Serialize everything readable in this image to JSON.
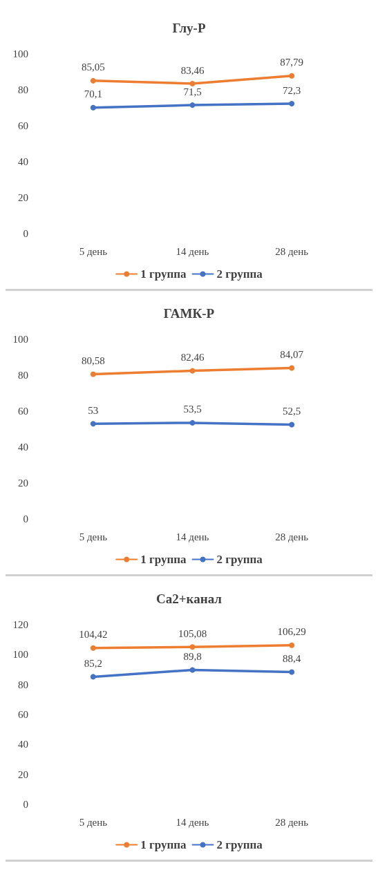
{
  "chart_data": [
    {
      "type": "line",
      "title": "Глу-Р",
      "categories": [
        "5 день",
        "14 день",
        "28 день"
      ],
      "ylim": [
        0,
        100
      ],
      "yticks": [
        0,
        20,
        40,
        60,
        80,
        100
      ],
      "legend": "bottom",
      "marker": "circle",
      "series": [
        {
          "name": "1 группа",
          "color": "#ed7d31",
          "values": [
            85.05,
            83.46,
            87.79
          ],
          "value_labels": [
            "85,05",
            "83,46",
            "87,79"
          ]
        },
        {
          "name": "2 группа",
          "color": "#4472c4",
          "values": [
            70.1,
            71.5,
            72.3
          ],
          "value_labels": [
            "70,1",
            "71,5",
            "72,3"
          ]
        }
      ]
    },
    {
      "type": "line",
      "title": "ГАМК-Р",
      "categories": [
        "5 день",
        "14 день",
        "28 день"
      ],
      "ylim": [
        0,
        100
      ],
      "yticks": [
        0,
        20,
        40,
        60,
        80,
        100
      ],
      "legend": "bottom",
      "marker": "circle",
      "series": [
        {
          "name": "1 группа",
          "color": "#ed7d31",
          "values": [
            80.58,
            82.46,
            84.07
          ],
          "value_labels": [
            "80,58",
            "82,46",
            "84,07"
          ]
        },
        {
          "name": "2 группа",
          "color": "#4472c4",
          "values": [
            53,
            53.5,
            52.5
          ],
          "value_labels": [
            "53",
            "53,5",
            "52,5"
          ]
        }
      ]
    },
    {
      "type": "line",
      "title": "Ca2+канал",
      "categories": [
        "5 день",
        "14 день",
        "28 день"
      ],
      "ylim": [
        0,
        120
      ],
      "yticks": [
        0,
        20,
        40,
        60,
        80,
        100,
        120
      ],
      "legend": "bottom",
      "marker": "circle",
      "series": [
        {
          "name": "1 группа",
          "color": "#ed7d31",
          "values": [
            104.42,
            105.08,
            106.29
          ],
          "value_labels": [
            "104,42",
            "105,08",
            "106,29"
          ]
        },
        {
          "name": "2 группа",
          "color": "#4472c4",
          "values": [
            85.2,
            89.8,
            88.4
          ],
          "value_labels": [
            "85,2",
            "89,8",
            "88,4"
          ]
        }
      ]
    }
  ]
}
